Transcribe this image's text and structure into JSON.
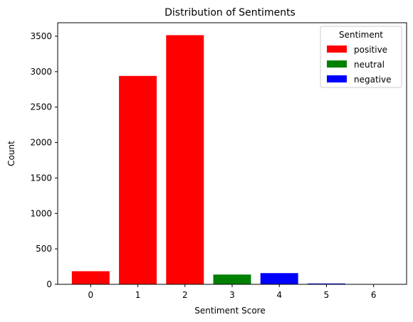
{
  "chart_data": {
    "type": "bar",
    "title": "Distribution of Sentiments",
    "xlabel": "Sentiment Score",
    "ylabel": "Count",
    "categories": [
      "0",
      "1",
      "2",
      "3",
      "4",
      "5",
      "6"
    ],
    "values": [
      185,
      2940,
      3515,
      138,
      158,
      12,
      2
    ],
    "bar_colors": [
      "#ff0000",
      "#ff0000",
      "#ff0000",
      "#008000",
      "#0000ff",
      "#0000ff",
      "#0000ff"
    ],
    "ylim": [
      0,
      3690
    ],
    "yticks": [
      0,
      500,
      1000,
      1500,
      2000,
      2500,
      3000,
      3500
    ],
    "grid": false,
    "legend": {
      "title": "Sentiment",
      "placement": "top-right",
      "entries": [
        {
          "label": "positive",
          "color": "#ff0000"
        },
        {
          "label": "neutral",
          "color": "#008000"
        },
        {
          "label": "negative",
          "color": "#0000ff"
        }
      ]
    }
  }
}
